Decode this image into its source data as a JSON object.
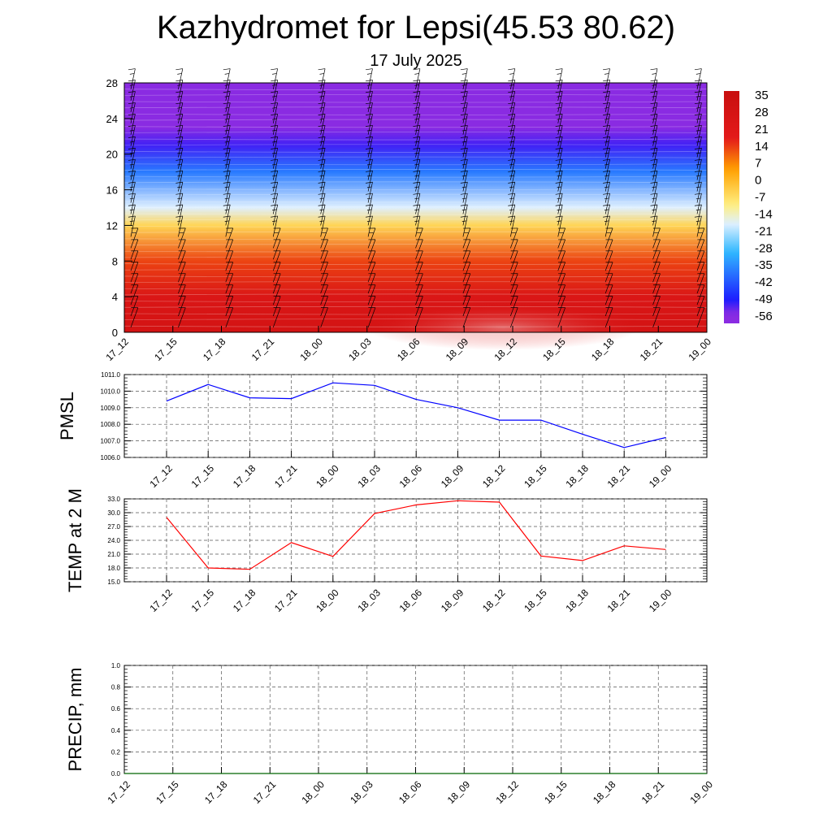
{
  "header": {
    "title": "Kazhydromet for Lepsi(45.53 80.62)",
    "subtitle": "17 July 2025"
  },
  "chart_data": [
    {
      "type": "heatmap",
      "x_ticks": [
        "17_12",
        "17_15",
        "17_18",
        "17_21",
        "18_00",
        "18_03",
        "18_06",
        "18_09",
        "18_12",
        "18_15",
        "18_18",
        "18_21",
        "19_00"
      ],
      "y_ticks": [
        "0",
        "4",
        "8",
        "12",
        "16",
        "20",
        "24",
        "28"
      ],
      "ylim": [
        0,
        28
      ],
      "colorbar": {
        "labels": [
          "35",
          "28",
          "21",
          "14",
          "7",
          "0",
          "-7",
          "-14",
          "-21",
          "-28",
          "-35",
          "-42",
          "-49",
          "-56"
        ],
        "range": [
          -60,
          38
        ]
      },
      "temperature_profile": [
        {
          "height": 0,
          "temp": 30
        },
        {
          "height": 4,
          "temp": 25
        },
        {
          "height": 8,
          "temp": 14
        },
        {
          "height": 12,
          "temp": -5
        },
        {
          "height": 14,
          "temp": -18
        },
        {
          "height": 18,
          "temp": -38
        },
        {
          "height": 21,
          "temp": -52
        },
        {
          "height": 23,
          "temp": -56
        },
        {
          "height": 28,
          "temp": -60
        }
      ],
      "colors": {
        "violet": "#8a2be2",
        "blue": "#1c1cff",
        "cyan": "#30b8ff",
        "pale": "#dff0ff",
        "yellow": "#ffef80",
        "orange": "#ffa000",
        "red": "#e41a1a",
        "darkred": "#c80f0f"
      }
    },
    {
      "type": "line",
      "ylabel": "PMSL",
      "categories": [
        "17_12",
        "17_15",
        "17_18",
        "17_21",
        "18_00",
        "18_03",
        "18_06",
        "18_09",
        "18_12",
        "18_15",
        "18_18",
        "18_21",
        "19_00"
      ],
      "values": [
        1009.4,
        1010.4,
        1009.6,
        1009.55,
        1010.5,
        1010.35,
        1009.5,
        1009.0,
        1008.25,
        1008.25,
        1007.4,
        1006.6,
        1007.2
      ],
      "y_ticks": [
        "1006.0",
        "1007.0",
        "1008.0",
        "1009.0",
        "1010.0",
        "1011.0"
      ],
      "ylim": [
        1006,
        1011
      ],
      "color": "#0000ff"
    },
    {
      "type": "line",
      "ylabel": "TEMP at 2 M",
      "categories": [
        "17_12",
        "17_15",
        "17_18",
        "17_21",
        "18_00",
        "18_03",
        "18_06",
        "18_09",
        "18_12",
        "18_15",
        "18_18",
        "18_21",
        "19_00"
      ],
      "values": [
        29.0,
        18.0,
        17.7,
        23.5,
        20.5,
        29.8,
        31.7,
        32.6,
        32.3,
        20.6,
        19.6,
        22.8,
        22.0
      ],
      "y_ticks": [
        "15.0",
        "18.0",
        "21.0",
        "24.0",
        "27.0",
        "30.0",
        "33.0"
      ],
      "ylim": [
        15,
        33
      ],
      "color": "#ff0000"
    },
    {
      "type": "line",
      "ylabel": "PRECIP, mm",
      "x_ticks": [
        "17_12",
        "17_15",
        "17_18",
        "17_21",
        "18_00",
        "18_03",
        "18_06",
        "18_09",
        "18_12",
        "18_15",
        "18_18",
        "18_21",
        "19_00"
      ],
      "values": [
        0,
        0,
        0,
        0,
        0,
        0,
        0,
        0,
        0,
        0,
        0,
        0,
        0
      ],
      "y_ticks": [
        "0.0",
        "0.2",
        "0.4",
        "0.6",
        "0.8",
        "1.0"
      ],
      "ylim": [
        0,
        1
      ],
      "color": "#006400"
    }
  ]
}
